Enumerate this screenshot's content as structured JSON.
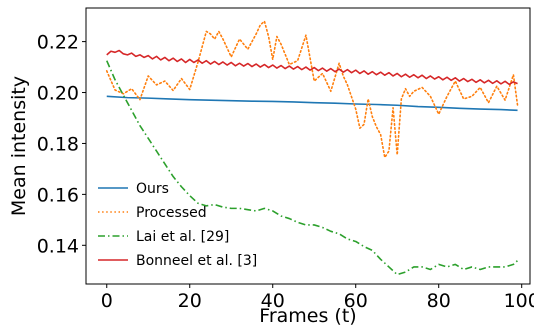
{
  "chart_data": {
    "type": "line",
    "xlabel": "Frames (t)",
    "ylabel": "Mean intensity",
    "xlim": [
      -5,
      102
    ],
    "ylim": [
      0.1248,
      0.2332
    ],
    "xticks": [
      0,
      20,
      40,
      60,
      80,
      100
    ],
    "yticks": [
      0.14,
      0.16,
      0.18,
      0.2,
      0.22
    ],
    "xtick_labels": [
      "0",
      "20",
      "40",
      "60",
      "80",
      "100"
    ],
    "ytick_labels": [
      "0.14",
      "0.16",
      "0.18",
      "0.20",
      "0.22"
    ],
    "grid": false,
    "legend_position": "lower-left",
    "series": [
      {
        "name": "Ours",
        "color": "#1f77b4",
        "style": "solid",
        "x": [
          0,
          5,
          10,
          15,
          20,
          25,
          30,
          35,
          40,
          45,
          50,
          55,
          60,
          65,
          70,
          75,
          80,
          85,
          90,
          95,
          99
        ],
        "y": [
          0.1985,
          0.198,
          0.1978,
          0.1975,
          0.1972,
          0.197,
          0.1968,
          0.1966,
          0.1965,
          0.1963,
          0.196,
          0.1958,
          0.1955,
          0.1953,
          0.195,
          0.1945,
          0.1942,
          0.1938,
          0.1935,
          0.1933,
          0.193
        ]
      },
      {
        "name": "Processed",
        "color": "#ff7f0e",
        "style": "dotted",
        "x": [
          0,
          2,
          4,
          6,
          8,
          10,
          12,
          14,
          16,
          18,
          20,
          22,
          23,
          24,
          25,
          26,
          27,
          28,
          30,
          32,
          34,
          36,
          37,
          38,
          39,
          40,
          41,
          42,
          44,
          46,
          48,
          50,
          52,
          54,
          56,
          57,
          58,
          60,
          61,
          62,
          63,
          64,
          65,
          66,
          67,
          68,
          69,
          70,
          71,
          72,
          73,
          74,
          76,
          78,
          80,
          82,
          84,
          86,
          88,
          90,
          92,
          94,
          96,
          98,
          99
        ],
        "y": [
          0.2085,
          0.201,
          0.1995,
          0.2015,
          0.1972,
          0.2065,
          0.203,
          0.2045,
          0.2008,
          0.2055,
          0.2012,
          0.212,
          0.218,
          0.224,
          0.223,
          0.221,
          0.224,
          0.221,
          0.214,
          0.221,
          0.217,
          0.223,
          0.2265,
          0.228,
          0.222,
          0.213,
          0.222,
          0.219,
          0.211,
          0.2125,
          0.2225,
          0.2045,
          0.2075,
          0.2005,
          0.2115,
          0.2065,
          0.203,
          0.1935,
          0.186,
          0.1875,
          0.1975,
          0.1905,
          0.1865,
          0.1835,
          0.1745,
          0.177,
          0.194,
          0.1755,
          0.1975,
          0.2015,
          0.1985,
          0.2005,
          0.202,
          0.1985,
          0.1915,
          0.1985,
          0.2045,
          0.1975,
          0.1985,
          0.202,
          0.196,
          0.2025,
          0.197,
          0.207,
          0.195
        ]
      },
      {
        "name": "Lai et al. [29]",
        "color": "#2ca02c",
        "style": "dashdot",
        "x": [
          0,
          2,
          4,
          6,
          8,
          10,
          12,
          14,
          16,
          18,
          20,
          22,
          24,
          26,
          28,
          30,
          32,
          34,
          36,
          38,
          40,
          42,
          44,
          46,
          48,
          50,
          52,
          54,
          56,
          58,
          60,
          62,
          64,
          66,
          68,
          70,
          72,
          74,
          76,
          78,
          80,
          82,
          84,
          86,
          88,
          90,
          92,
          94,
          96,
          98,
          99
        ],
        "y": [
          0.2125,
          0.205,
          0.199,
          0.193,
          0.187,
          0.182,
          0.177,
          0.172,
          0.167,
          0.163,
          0.1595,
          0.1565,
          0.1555,
          0.156,
          0.155,
          0.1545,
          0.1545,
          0.154,
          0.1535,
          0.1545,
          0.1535,
          0.1515,
          0.1505,
          0.149,
          0.148,
          0.148,
          0.147,
          0.1455,
          0.1445,
          0.1425,
          0.1415,
          0.1395,
          0.138,
          0.1345,
          0.1315,
          0.1285,
          0.1295,
          0.1315,
          0.1315,
          0.1305,
          0.1325,
          0.1315,
          0.1325,
          0.1305,
          0.1315,
          0.1305,
          0.1315,
          0.1315,
          0.1315,
          0.1325,
          0.134
        ]
      },
      {
        "name": "Bonneel et al. [3]",
        "color": "#d62728",
        "style": "solid",
        "x": [
          0,
          1,
          2,
          3,
          4,
          5,
          6,
          7,
          8,
          9,
          10,
          11,
          12,
          13,
          14,
          15,
          16,
          17,
          18,
          19,
          20,
          21,
          22,
          23,
          24,
          25,
          26,
          27,
          28,
          29,
          30,
          31,
          32,
          33,
          34,
          35,
          36,
          37,
          38,
          39,
          40,
          41,
          42,
          43,
          44,
          45,
          46,
          47,
          48,
          49,
          50,
          51,
          52,
          53,
          54,
          55,
          56,
          57,
          58,
          59,
          60,
          61,
          62,
          63,
          64,
          65,
          66,
          67,
          68,
          69,
          70,
          71,
          72,
          73,
          74,
          75,
          76,
          77,
          78,
          79,
          80,
          81,
          82,
          83,
          84,
          85,
          86,
          87,
          88,
          89,
          90,
          91,
          92,
          93,
          94,
          95,
          96,
          97,
          98,
          99
        ],
        "y": [
          0.2148,
          0.2162,
          0.2158,
          0.2165,
          0.2152,
          0.2148,
          0.2155,
          0.2142,
          0.2148,
          0.2138,
          0.2145,
          0.2132,
          0.2142,
          0.2128,
          0.2138,
          0.2125,
          0.2135,
          0.2122,
          0.2132,
          0.2118,
          0.213,
          0.2118,
          0.2128,
          0.2115,
          0.2125,
          0.2112,
          0.2122,
          0.211,
          0.212,
          0.2108,
          0.2118,
          0.2105,
          0.2115,
          0.2104,
          0.2114,
          0.2102,
          0.2112,
          0.21,
          0.211,
          0.2098,
          0.2108,
          0.2096,
          0.2106,
          0.2094,
          0.2104,
          0.2092,
          0.2102,
          0.209,
          0.21,
          0.2088,
          0.2098,
          0.2086,
          0.2096,
          0.2084,
          0.2094,
          0.2082,
          0.2092,
          0.208,
          0.209,
          0.2078,
          0.2088,
          0.2075,
          0.2085,
          0.2072,
          0.2082,
          0.207,
          0.208,
          0.2068,
          0.2078,
          0.2065,
          0.2075,
          0.2062,
          0.2072,
          0.206,
          0.207,
          0.2058,
          0.2068,
          0.2055,
          0.2065,
          0.2053,
          0.2062,
          0.205,
          0.206,
          0.2048,
          0.2058,
          0.2045,
          0.2055,
          0.2043,
          0.2052,
          0.204,
          0.205,
          0.2038,
          0.2048,
          0.2036,
          0.2046,
          0.2034,
          0.2044,
          0.2032,
          0.2042,
          0.2035
        ]
      }
    ]
  }
}
